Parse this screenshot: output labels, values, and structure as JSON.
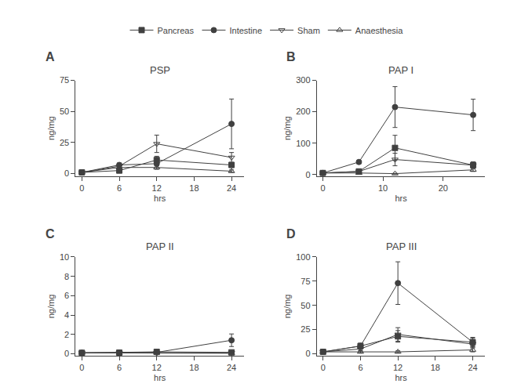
{
  "chart_data": [
    {
      "type": "line",
      "title": "PSP",
      "xlabel": "hrs",
      "ylabel": "ng/mg",
      "annotations": [
        "A"
      ],
      "x": [
        0,
        6,
        12,
        24
      ],
      "xlim": [
        -1,
        26
      ],
      "xticks": [
        0,
        6,
        12,
        18,
        24
      ],
      "ylim": [
        -2,
        75
      ],
      "yticks": [
        0,
        25,
        50,
        75
      ],
      "grid": false,
      "legend": "top",
      "series": [
        {
          "name": "Pancreas",
          "color": "#404040",
          "marker": "square",
          "values": [
            1,
            2.5,
            11,
            7
          ],
          "yerr": [
            0.5,
            1.0,
            3.0,
            2.0
          ]
        },
        {
          "name": "Intestine",
          "color": "#404040",
          "marker": "circle",
          "values": [
            1,
            7,
            8,
            40
          ],
          "yerr": [
            0.5,
            1.5,
            3.0,
            20.0
          ]
        },
        {
          "name": "Sham",
          "color": "#404040",
          "marker": "triangle-down-open",
          "values": [
            1,
            6,
            24,
            13
          ],
          "yerr": [
            0.5,
            1.0,
            7.0,
            4.0
          ]
        },
        {
          "name": "Anaesthesia",
          "color": "#404040",
          "marker": "triangle-up-open",
          "values": [
            1,
            5,
            5,
            2
          ],
          "yerr": [
            0.5,
            1.0,
            1.5,
            1.0
          ]
        }
      ]
    },
    {
      "type": "line",
      "title": "PAP I",
      "xlabel": "hrs",
      "ylabel": "ng/mg",
      "annotations": [
        "B"
      ],
      "x": [
        0,
        6,
        12,
        25
      ],
      "xlim": [
        -1,
        27
      ],
      "xticks": [
        0,
        10,
        20
      ],
      "ylim": [
        -5,
        300
      ],
      "yticks": [
        0,
        100,
        200,
        300
      ],
      "grid": false,
      "series": [
        {
          "name": "Pancreas",
          "color": "#404040",
          "marker": "square",
          "values": [
            5,
            10,
            85,
            30
          ],
          "yerr": [
            2,
            3,
            40,
            10
          ]
        },
        {
          "name": "Intestine",
          "color": "#404040",
          "marker": "circle",
          "values": [
            5,
            40,
            215,
            190
          ],
          "yerr": [
            2,
            5,
            65,
            50
          ]
        },
        {
          "name": "Sham",
          "color": "#404040",
          "marker": "triangle-down-open",
          "values": [
            5,
            10,
            48,
            30
          ],
          "yerr": [
            2,
            3,
            20,
            10
          ]
        },
        {
          "name": "Anaesthesia",
          "color": "#404040",
          "marker": "triangle-up-open",
          "values": [
            5,
            5,
            3,
            15
          ],
          "yerr": [
            2,
            2,
            1,
            5
          ]
        }
      ]
    },
    {
      "type": "line",
      "title": "PAP II",
      "xlabel": "hrs",
      "ylabel": "ng/mg",
      "annotations": [
        "C"
      ],
      "x": [
        0,
        6,
        12,
        24
      ],
      "xlim": [
        -1,
        26
      ],
      "xticks": [
        0,
        6,
        12,
        18,
        24
      ],
      "ylim": [
        -0.2,
        10
      ],
      "yticks": [
        0,
        2,
        4,
        6,
        8,
        10
      ],
      "grid": false,
      "series": [
        {
          "name": "Pancreas",
          "color": "#404040",
          "marker": "square",
          "values": [
            0.1,
            0.12,
            0.2,
            0.15
          ],
          "yerr": [
            0.05,
            0.04,
            0.08,
            0.05
          ]
        },
        {
          "name": "Intestine",
          "color": "#404040",
          "marker": "circle",
          "values": [
            0.1,
            0.1,
            0.15,
            1.4
          ],
          "yerr": [
            0.05,
            0.04,
            0.06,
            0.65
          ]
        },
        {
          "name": "Sham",
          "color": "#404040",
          "marker": "triangle-down-open",
          "values": [
            0.1,
            0.1,
            0.1,
            0.1
          ],
          "yerr": [
            0.04,
            0.03,
            0.04,
            0.04
          ]
        },
        {
          "name": "Anaesthesia",
          "color": "#404040",
          "marker": "triangle-up-open",
          "values": [
            0.1,
            0.08,
            0.1,
            0.05
          ],
          "yerr": [
            0.04,
            0.03,
            0.04,
            0.02
          ]
        }
      ]
    },
    {
      "type": "line",
      "title": "PAP III",
      "xlabel": "hrs",
      "ylabel": "ng/mg",
      "annotations": [
        "D"
      ],
      "x": [
        0,
        6,
        12,
        24
      ],
      "xlim": [
        -1,
        26
      ],
      "xticks": [
        0,
        6,
        12,
        18,
        24
      ],
      "ylim": [
        -2,
        100
      ],
      "yticks": [
        0,
        25,
        50,
        75,
        100
      ],
      "grid": false,
      "series": [
        {
          "name": "Pancreas",
          "color": "#404040",
          "marker": "square",
          "values": [
            2,
            8,
            18,
            12
          ],
          "yerr": [
            1,
            2,
            6,
            4
          ]
        },
        {
          "name": "Intestine",
          "color": "#404040",
          "marker": "circle",
          "values": [
            2,
            8,
            73,
            12
          ],
          "yerr": [
            1,
            3,
            22,
            5
          ]
        },
        {
          "name": "Sham",
          "color": "#404040",
          "marker": "triangle-down-open",
          "values": [
            2,
            5,
            20,
            10
          ],
          "yerr": [
            1,
            2,
            7,
            3
          ]
        },
        {
          "name": "Anaesthesia",
          "color": "#404040",
          "marker": "triangle-up-open",
          "values": [
            2,
            2,
            2,
            4
          ],
          "yerr": [
            1,
            1,
            1,
            2
          ]
        }
      ]
    }
  ]
}
